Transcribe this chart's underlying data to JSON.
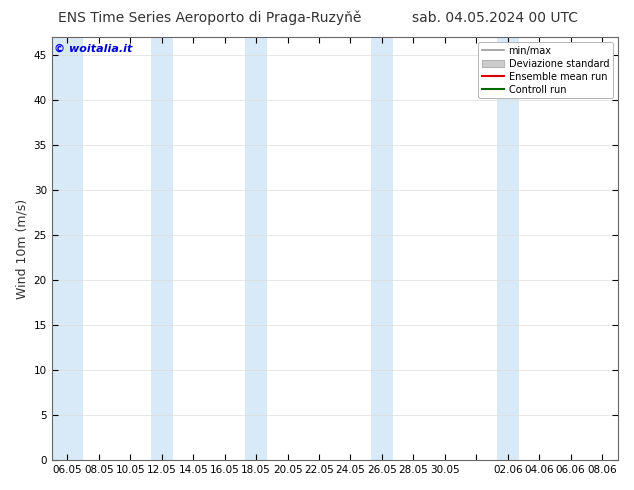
{
  "title_left": "ENS Time Series Aeroporto di Praga-Ruzyňě",
  "title_right": "sab. 04.05.2024 00 UTC",
  "ylabel": "Wind 10m (m/s)",
  "watermark": "© woitalia.it",
  "ylim": [
    0,
    47
  ],
  "yticks": [
    0,
    5,
    10,
    15,
    20,
    25,
    30,
    35,
    40,
    45
  ],
  "background_color": "#ffffff",
  "shaded_color": "#d8eaf7",
  "legend_items": [
    {
      "label": "min/max",
      "color": "#999999",
      "lw": 1.2,
      "style": "line"
    },
    {
      "label": "Deviazione standard",
      "color": "#cccccc",
      "lw": 8,
      "style": "band"
    },
    {
      "label": "Ensemble mean run",
      "color": "#dd0000",
      "lw": 1.5,
      "style": "line"
    },
    {
      "label": "Controll run",
      "color": "#006600",
      "lw": 1.5,
      "style": "line"
    }
  ],
  "title_fontsize": 10,
  "ylabel_fontsize": 9,
  "tick_fontsize": 7.5,
  "watermark_color": "#0000cc",
  "xtick_labels": [
    "06.05",
    "08.05",
    "10.05",
    "12.05",
    "14.05",
    "16.05",
    "18.05",
    "20.05",
    "22.05",
    "24.05",
    "26.05",
    "28.05",
    "30.05",
    "",
    "02.06",
    "04.06",
    "06.06",
    "08.06"
  ],
  "xtick_positions": [
    0,
    1,
    2,
    3,
    4,
    5,
    6,
    7,
    8,
    9,
    10,
    11,
    12,
    13,
    14,
    15,
    16,
    17
  ],
  "shaded_xspans": [
    [
      0,
      0.35
    ],
    [
      2.65,
      3.35
    ],
    [
      5.65,
      6.35
    ],
    [
      9.65,
      10.35
    ],
    [
      13.65,
      14.35
    ]
  ]
}
